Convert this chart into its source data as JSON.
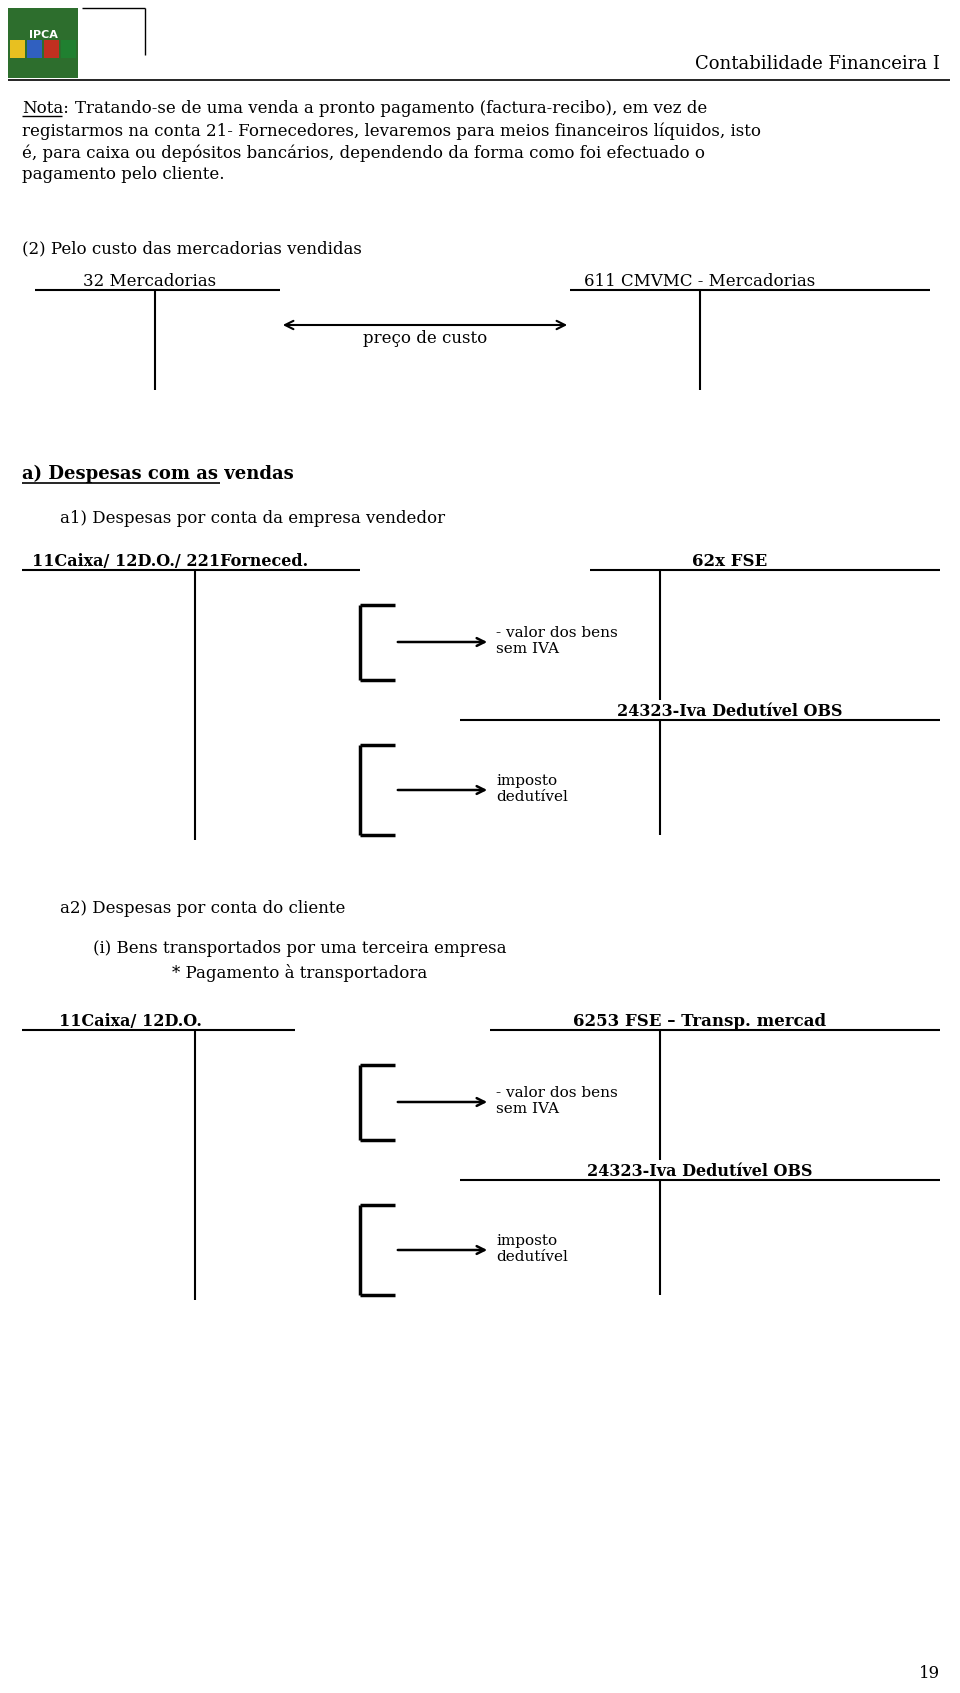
{
  "bg_color": "#ffffff",
  "title_right": "Contabilidade Financeira I",
  "note_line1": "Nota:  Tratando-se de uma venda a pronto pagamento (factura-recibo), em vez de",
  "note_line2": "registarmos na conta 21- Fornecedores, levaremos para meios financeiros líquidos, isto",
  "note_line3": "é, para caixa ou depósitos bancários, dependendo da forma como foi efectuado o",
  "note_line4": "pagamento pelo cliente.",
  "section2_title": "(2) Pelo custo das mercadorias vendidas",
  "acct1_label": "32 Mercadorias",
  "acct2_label": "611 CMVMC - Mercadorias",
  "arrow_label": "preço de custo",
  "section_a_title": "a) Despesas com as vendas",
  "section_a1_title": "a1) Despesas por conta da empresa vendedor",
  "acct_a1_left": "11Caixa/ 12D.O./ 221Forneced.",
  "acct_a1_right1": "62x FSE",
  "acct_a1_label1": "- valor dos bens\nsem IVA",
  "acct_a1_right2": "24323-Iva Dedutível OBS",
  "acct_a1_label2": "imposto\ndedutível",
  "section_a2_title": "a2) Despesas por conta do cliente",
  "section_a2_sub1": "(i) Bens transportados por uma terceira empresa",
  "section_a2_sub2": "* Pagamento à transportadora",
  "acct_a2_left": "11Caixa/ 12D.O.",
  "acct_a2_right1": "6253 FSE – Transp. mercad",
  "acct_a2_label1": "- valor dos bens\nsem IVA",
  "acct_a2_right2": "24323-Iva Dedutível OBS",
  "acct_a2_label2": "imposto\ndedutível",
  "page_number": "19"
}
